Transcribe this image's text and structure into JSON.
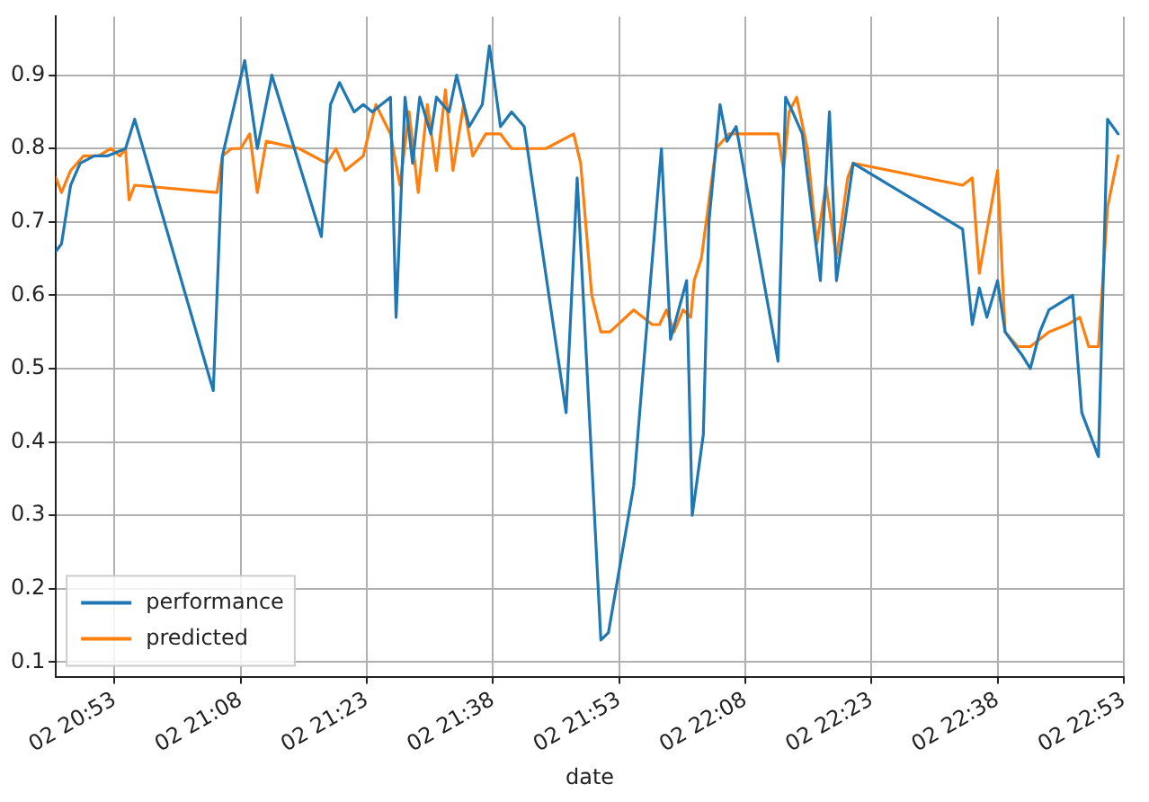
{
  "chart_data": {
    "type": "line",
    "xlabel": "date",
    "xlim": [
      "--01-02T20:46:01",
      "--01-02T22:53:00"
    ],
    "ylim": [
      0.08,
      0.98
    ],
    "xticks": [
      {
        "value": "--01-02T20:53",
        "label": "02 20:53"
      },
      {
        "value": "--01-02T21:08",
        "label": "02 21:08"
      },
      {
        "value": "--01-02T21:23",
        "label": "02 21:23"
      },
      {
        "value": "--01-02T21:38",
        "label": "02 21:38"
      },
      {
        "value": "--01-02T21:53",
        "label": "02 21:53"
      },
      {
        "value": "--01-02T22:08",
        "label": "02 22:08"
      },
      {
        "value": "--01-02T22:23",
        "label": "02 22:23"
      },
      {
        "value": "--01-02T22:38",
        "label": "02 22:38"
      },
      {
        "value": "--01-02T22:53",
        "label": "02 22:53"
      }
    ],
    "yticks": [
      0.1,
      0.2,
      0.3,
      0.4,
      0.5,
      0.6,
      0.7,
      0.8,
      0.9
    ],
    "grid": true,
    "legend": "bottom left",
    "line_style": "solid",
    "series": [
      {
        "name": "performance",
        "color": "#1f77b4",
        "x": [
          "--01-02T20:46:01",
          "--01-02T20:46:41",
          "--01-02T20:47:46",
          "--01-02T20:48:54",
          "--01-02T20:50:35",
          "--01-02T20:52:08",
          "--01-02T20:54:18",
          "--01-02T20:55:23",
          "--01-02T21:04:44",
          "--01-02T21:05:49",
          "--01-02T21:08:28",
          "--01-02T21:09:58",
          "--01-02T21:11:42",
          "--01-02T21:17:35",
          "--01-02T21:18:40",
          "--01-02T21:19:44",
          "--01-02T21:21:29",
          "--01-02T21:22:34",
          "--01-02T21:23:38",
          "--01-02T21:24:43",
          "--01-02T21:25:48",
          "--01-02T21:26:28",
          "--01-02T21:27:32",
          "--01-02T21:28:26",
          "--01-02T21:29:17",
          "--01-02T21:30:36",
          "--01-02T21:31:16",
          "--01-02T21:32:46",
          "--01-02T21:33:40",
          "--01-02T21:35:10",
          "--01-02T21:36:43",
          "--01-02T21:37:34",
          "--01-02T21:38:53",
          "--01-02T21:40:12",
          "--01-02T21:41:42",
          "--01-02T21:46:41",
          "--01-02T21:48:00",
          "--01-02T21:50:49",
          "--01-02T21:51:43",
          "--01-02T21:54:43",
          "--01-02T21:58:01",
          "--01-02T21:59:06",
          "--01-02T22:01:01",
          "--01-02T22:01:41",
          "--01-02T22:03:00",
          "--01-02T22:03:40",
          "--01-02T22:04:59",
          "--01-02T22:05:49",
          "--01-02T22:06:54",
          "--01-02T22:11:53",
          "--01-02T22:12:47",
          "--01-02T22:13:37",
          "--01-02T22:14:46",
          "--01-02T22:16:55",
          "--01-02T22:18:00",
          "--01-02T22:18:50",
          "--01-02T22:20:49",
          "--01-02T22:33:50",
          "--01-02T22:34:59",
          "--01-02T22:35:49",
          "--01-02T22:36:43",
          "--01-02T22:37:59",
          "--01-02T22:38:53",
          "--01-02T22:40:08",
          "--01-02T22:40:48",
          "--01-02T22:41:53",
          "--01-02T22:43:01",
          "--01-02T22:44:06",
          "--01-02T22:46:55",
          "--01-02T22:48:00",
          "--01-02T22:49:59",
          "--01-02T22:51:04",
          "--01-02T22:52:19"
        ],
        "values": [
          0.66,
          0.67,
          0.75,
          0.78,
          0.79,
          0.79,
          0.8,
          0.84,
          0.47,
          0.79,
          0.92,
          0.8,
          0.9,
          0.68,
          0.86,
          0.89,
          0.85,
          0.86,
          0.85,
          0.86,
          0.87,
          0.57,
          0.87,
          0.78,
          0.87,
          0.82,
          0.87,
          0.85,
          0.9,
          0.83,
          0.86,
          0.94,
          0.83,
          0.85,
          0.83,
          0.44,
          0.76,
          0.13,
          0.14,
          0.34,
          0.8,
          0.54,
          0.62,
          0.3,
          0.41,
          0.7,
          0.86,
          0.81,
          0.83,
          0.51,
          0.87,
          0.85,
          0.82,
          0.62,
          0.85,
          0.62,
          0.78,
          0.69,
          0.56,
          0.61,
          0.57,
          0.62,
          0.55,
          0.53,
          0.52,
          0.5,
          0.55,
          0.58,
          0.6,
          0.44,
          0.38,
          0.84,
          0.82
        ]
      },
      {
        "name": "predicted",
        "color": "#ff7f0e",
        "x": [
          "--01-02T20:46:01",
          "--01-02T20:46:41",
          "--01-02T20:47:46",
          "--01-02T20:49:19",
          "--01-02T20:51:04",
          "--01-02T20:52:34",
          "--01-02T20:53:38",
          "--01-02T20:54:18",
          "--01-02T20:54:43",
          "--01-02T20:55:23",
          "--01-02T21:05:10",
          "--01-02T21:05:49",
          "--01-02T21:06:54",
          "--01-02T21:07:59",
          "--01-02T21:09:04",
          "--01-02T21:09:58",
          "--01-02T21:11:02",
          "--01-02T21:14:56",
          "--01-02T21:18:14",
          "--01-02T21:19:19",
          "--01-02T21:20:24",
          "--01-02T21:22:34",
          "--01-02T21:24:04",
          "--01-02T21:25:48",
          "--01-02T21:26:56",
          "--01-02T21:28:01",
          "--01-02T21:29:06",
          "--01-02T21:30:11",
          "--01-02T21:31:16",
          "--01-02T21:32:20",
          "--01-02T21:33:14",
          "--01-02T21:34:30",
          "--01-02T21:35:35",
          "--01-02T21:37:08",
          "--01-02T21:38:53",
          "--01-02T21:40:12",
          "--01-02T21:44:17",
          "--01-02T21:47:35",
          "--01-02T21:48:25",
          "--01-02T21:49:44",
          "--01-02T21:50:49",
          "--01-02T21:51:54",
          "--01-02T21:54:43",
          "--01-02T21:56:56",
          "--01-02T21:57:47",
          "--01-02T21:58:37",
          "--01-02T21:59:31",
          "--01-02T22:00:36",
          "--01-02T22:01:30",
          "--01-02T22:01:55",
          "--01-02T22:02:46",
          "--01-02T22:04:30",
          "--01-02T22:06:04",
          "--01-02T22:11:53",
          "--01-02T22:12:32",
          "--01-02T22:13:12",
          "--01-02T22:14:06",
          "--01-02T22:15:22",
          "--01-02T22:16:30",
          "--01-02T22:17:35",
          "--01-02T22:18:50",
          "--01-02T22:20:10",
          "--01-02T22:20:49",
          "--01-02T22:33:50",
          "--01-02T22:34:59",
          "--01-02T22:35:49",
          "--01-02T22:37:59",
          "--01-02T22:38:53",
          "--01-02T22:40:23",
          "--01-02T22:41:53",
          "--01-02T22:44:06",
          "--01-02T22:46:16",
          "--01-02T22:47:46",
          "--01-02T22:48:50",
          "--01-02T22:49:59",
          "--01-02T22:51:04",
          "--01-02T22:52:19"
        ],
        "values": [
          0.76,
          0.74,
          0.77,
          0.79,
          0.79,
          0.8,
          0.79,
          0.8,
          0.73,
          0.75,
          0.74,
          0.79,
          0.8,
          0.8,
          0.82,
          0.74,
          0.81,
          0.8,
          0.78,
          0.8,
          0.77,
          0.79,
          0.86,
          0.82,
          0.75,
          0.85,
          0.74,
          0.86,
          0.77,
          0.88,
          0.77,
          0.86,
          0.79,
          0.82,
          0.82,
          0.8,
          0.8,
          0.82,
          0.78,
          0.6,
          0.55,
          0.55,
          0.58,
          0.56,
          0.56,
          0.58,
          0.55,
          0.58,
          0.57,
          0.62,
          0.65,
          0.8,
          0.82,
          0.82,
          0.77,
          0.85,
          0.87,
          0.8,
          0.67,
          0.75,
          0.65,
          0.76,
          0.78,
          0.75,
          0.76,
          0.63,
          0.77,
          0.55,
          0.53,
          0.53,
          0.55,
          0.56,
          0.57,
          0.53,
          0.53,
          0.72,
          0.79
        ]
      }
    ]
  }
}
